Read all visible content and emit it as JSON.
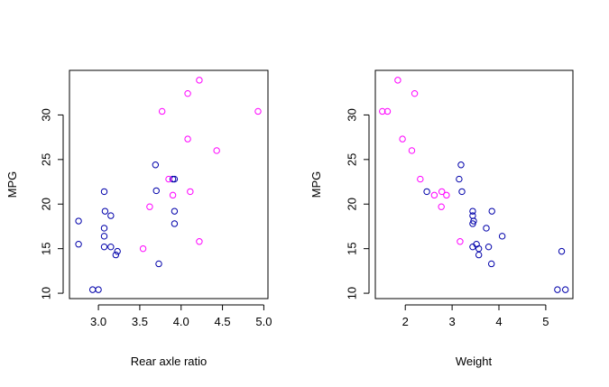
{
  "chart_data": [
    {
      "type": "scatter",
      "title": "",
      "xlabel": "Rear axle ratio",
      "ylabel": "MPG",
      "xlim": [
        2.65,
        5.05
      ],
      "ylim": [
        9.4,
        35.0
      ],
      "x_ticks": [
        "3.0",
        "3.5",
        "4.0",
        "4.5",
        "5.0"
      ],
      "y_ticks": [
        "10",
        "15",
        "20",
        "25",
        "30"
      ],
      "grid": false,
      "legend": "none",
      "series": [
        {
          "color": "#0000aa",
          "points": [
            [
              2.76,
              18.1
            ],
            [
              2.76,
              15.5
            ],
            [
              2.93,
              10.4
            ],
            [
              3.0,
              10.4
            ],
            [
              3.07,
              21.4
            ],
            [
              3.08,
              19.2
            ],
            [
              3.07,
              17.3
            ],
            [
              3.07,
              16.4
            ],
            [
              3.07,
              15.2
            ],
            [
              3.15,
              18.7
            ],
            [
              3.15,
              15.2
            ],
            [
              3.21,
              14.3
            ],
            [
              3.23,
              14.7
            ],
            [
              3.69,
              24.4
            ],
            [
              3.7,
              21.5
            ],
            [
              3.73,
              13.3
            ],
            [
              3.9,
              22.8
            ],
            [
              3.92,
              19.2
            ],
            [
              3.92,
              17.8
            ],
            [
              3.92,
              22.8
            ]
          ]
        },
        {
          "color": "#ff00ff",
          "points": [
            [
              3.54,
              15.0
            ],
            [
              3.62,
              19.7
            ],
            [
              3.77,
              30.4
            ],
            [
              3.85,
              22.8
            ],
            [
              3.9,
              21.0
            ],
            [
              4.08,
              32.4
            ],
            [
              4.08,
              27.3
            ],
            [
              4.11,
              21.4
            ],
            [
              4.22,
              33.9
            ],
            [
              4.22,
              15.8
            ],
            [
              4.43,
              26.0
            ],
            [
              4.93,
              30.4
            ]
          ]
        }
      ]
    },
    {
      "type": "scatter",
      "title": "",
      "xlabel": "Weight",
      "ylabel": "MPG",
      "xlim": [
        1.36,
        5.58
      ],
      "ylim": [
        9.4,
        35.0
      ],
      "x_ticks": [
        "2",
        "3",
        "4",
        "5"
      ],
      "y_ticks": [
        "10",
        "15",
        "20",
        "25",
        "30"
      ],
      "grid": false,
      "legend": "none",
      "series": [
        {
          "color": "#0000aa",
          "points": [
            [
              2.46,
              21.4
            ],
            [
              3.15,
              22.8
            ],
            [
              3.19,
              24.4
            ],
            [
              3.21,
              21.4
            ],
            [
              3.44,
              18.7
            ],
            [
              3.44,
              19.2
            ],
            [
              3.44,
              17.8
            ],
            [
              3.46,
              18.1
            ],
            [
              3.44,
              15.2
            ],
            [
              3.52,
              15.5
            ],
            [
              3.57,
              14.3
            ],
            [
              3.57,
              15.0
            ],
            [
              3.73,
              17.3
            ],
            [
              3.78,
              15.2
            ],
            [
              3.84,
              13.3
            ],
            [
              3.85,
              19.2
            ],
            [
              4.07,
              16.4
            ],
            [
              5.25,
              10.4
            ],
            [
              5.34,
              14.7
            ],
            [
              5.42,
              10.4
            ]
          ]
        },
        {
          "color": "#ff00ff",
          "points": [
            [
              1.51,
              30.4
            ],
            [
              1.62,
              30.4
            ],
            [
              1.84,
              33.9
            ],
            [
              1.94,
              27.3
            ],
            [
              2.14,
              26.0
            ],
            [
              2.2,
              32.4
            ],
            [
              2.32,
              22.8
            ],
            [
              2.62,
              21.0
            ],
            [
              2.77,
              19.7
            ],
            [
              2.78,
              21.4
            ],
            [
              2.88,
              21.0
            ],
            [
              3.17,
              15.8
            ]
          ]
        }
      ]
    }
  ]
}
